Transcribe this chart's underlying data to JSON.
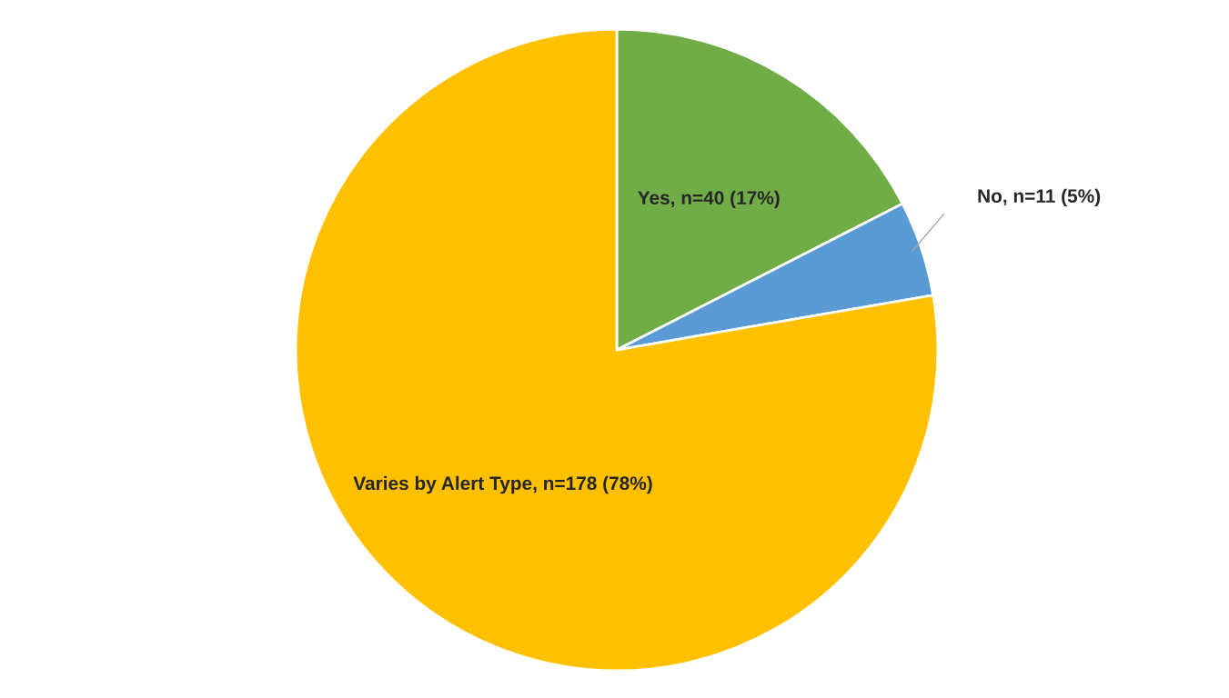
{
  "chart_data": {
    "type": "pie",
    "categories": [
      "Yes, n=40 (17%)",
      "No, n=11 (5%)",
      "Varies by Alert Type, n=178 (78%)"
    ],
    "values": [
      40,
      11,
      178
    ],
    "colors": [
      "#70ad47",
      "#5b9bd5",
      "#ffc000"
    ]
  }
}
